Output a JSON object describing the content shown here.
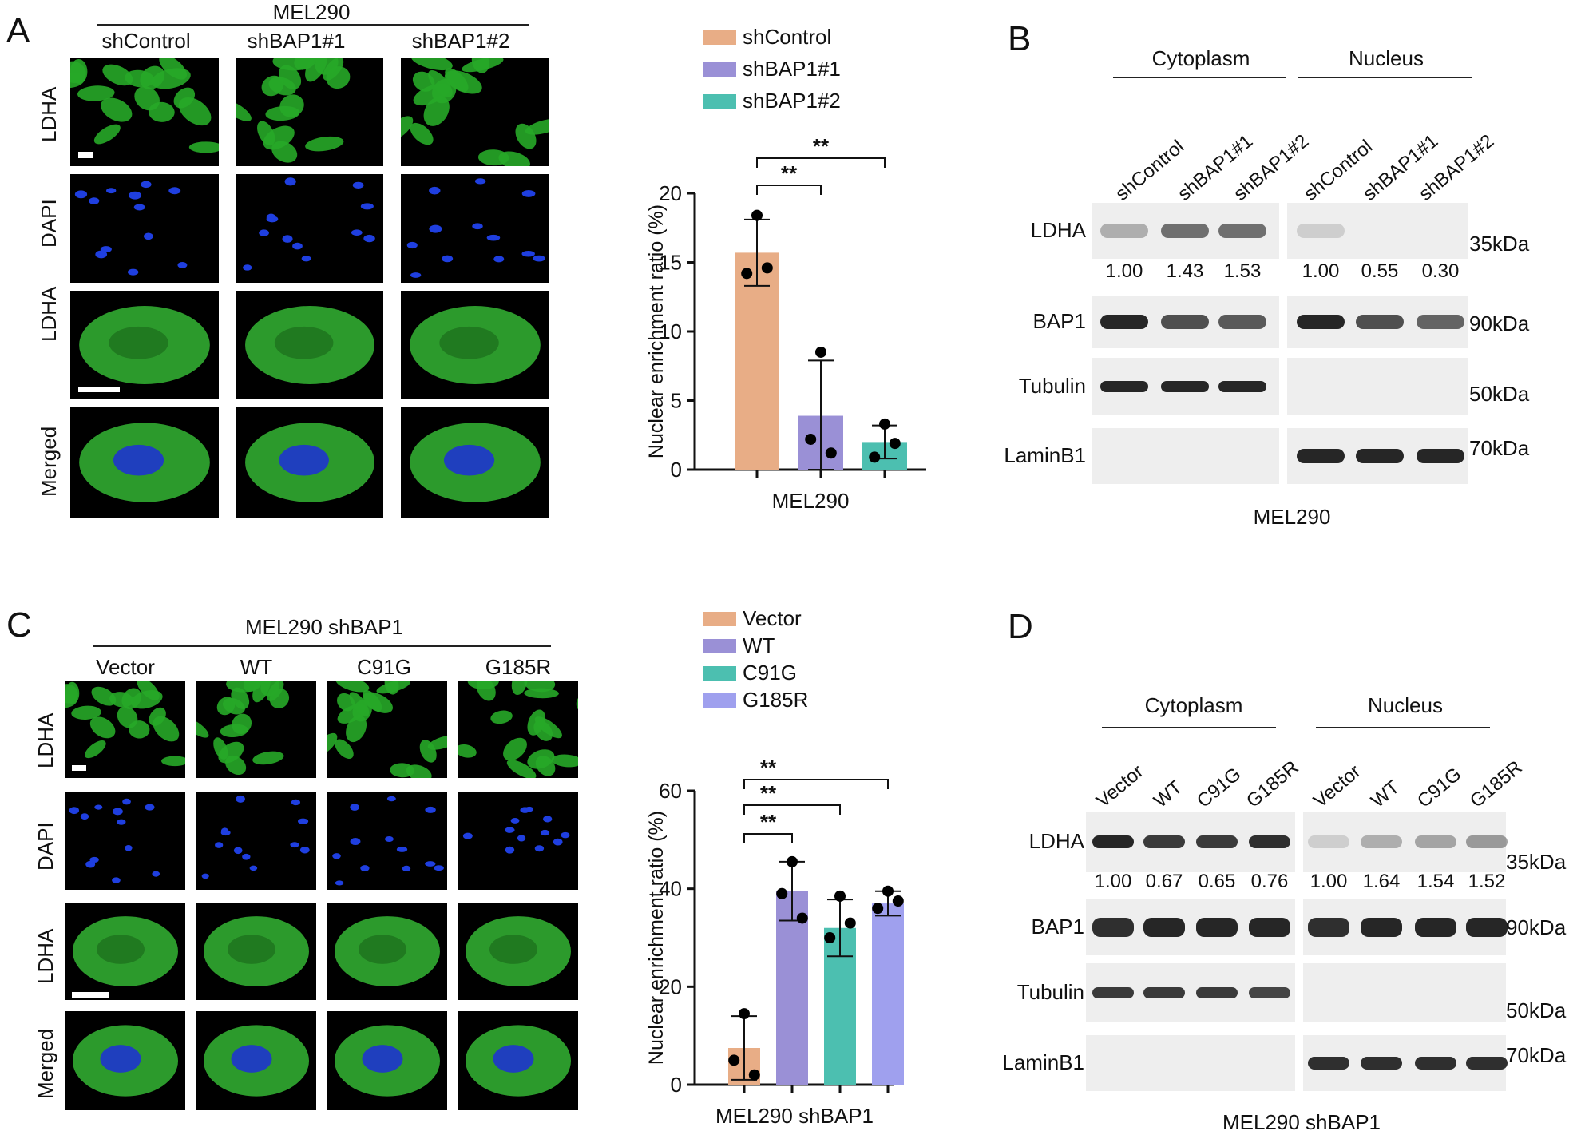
{
  "panels": {
    "A": {
      "letter": "A",
      "cell_line": "MEL290",
      "columns": [
        "shControl",
        "shBAP1#1",
        "shBAP1#2"
      ],
      "rows": [
        "LDHA",
        "DAPI",
        "LDHA",
        "Merged"
      ]
    },
    "B": {
      "letter": "B",
      "fractions": [
        "Cytoplasm",
        "Nucleus"
      ],
      "lanes": [
        "shControl",
        "shBAP1#1",
        "shBAP1#2",
        "shControl",
        "shBAP1#1",
        "shBAP1#2"
      ],
      "proteins": [
        "LDHA",
        "BAP1",
        "Tubulin",
        "LaminB1"
      ],
      "ldha_quant": [
        "1.00",
        "1.43",
        "1.53",
        "1.00",
        "0.55",
        "0.30"
      ],
      "sizes": [
        "35kDa",
        "90kDa",
        "50kDa",
        "70kDa"
      ],
      "footer": "MEL290"
    },
    "C": {
      "letter": "C",
      "cell_line": "MEL290 shBAP1",
      "columns": [
        "Vector",
        "WT",
        "C91G",
        "G185R"
      ],
      "rows": [
        "LDHA",
        "DAPI",
        "LDHA",
        "Merged"
      ]
    },
    "D": {
      "letter": "D",
      "fractions": [
        "Cytoplasm",
        "Nucleus"
      ],
      "lanes": [
        "Vector",
        "WT",
        "C91G",
        "G185R",
        "Vector",
        "WT",
        "C91G",
        "G185R"
      ],
      "proteins": [
        "LDHA",
        "BAP1",
        "Tubulin",
        "LaminB1"
      ],
      "ldha_quant": [
        "1.00",
        "0.67",
        "0.65",
        "0.76",
        "1.00",
        "1.64",
        "1.54",
        "1.52"
      ],
      "sizes": [
        "35kDa",
        "90kDa",
        "50kDa",
        "70kDa"
      ],
      "footer": "MEL290 shBAP1"
    }
  },
  "chart_data": [
    {
      "type": "bar",
      "panel": "A",
      "categories": [
        "shControl",
        "shBAP1#1",
        "shBAP1#2"
      ],
      "values": [
        15.7,
        3.9,
        2.0
      ],
      "errors": [
        2.4,
        4.0,
        1.2
      ],
      "points": [
        [
          18.4,
          14.2,
          14.6
        ],
        [
          8.5,
          2.2,
          1.2
        ],
        [
          3.3,
          0.9,
          1.9
        ]
      ],
      "colors": [
        "#e8ad86",
        "#9a90d6",
        "#4cbfb0"
      ],
      "ylabel": "Nuclear enrichment ratio (%)",
      "xlabel": "MEL290",
      "ylim": [
        0,
        20
      ],
      "yticks": [
        0,
        5,
        10,
        15,
        20
      ],
      "legend": [
        "shControl",
        "shBAP1#1",
        "shBAP1#2"
      ],
      "legend_position": "top",
      "significance": [
        {
          "from": 0,
          "to": 1,
          "label": "**"
        },
        {
          "from": 0,
          "to": 2,
          "label": "**"
        }
      ]
    },
    {
      "type": "bar",
      "panel": "C",
      "categories": [
        "Vector",
        "WT",
        "C91G",
        "G185R"
      ],
      "values": [
        7.5,
        39.5,
        32.0,
        37.0
      ],
      "errors": [
        6.5,
        6.0,
        5.8,
        2.5
      ],
      "points": [
        [
          14.5,
          5.0,
          2.0
        ],
        [
          45.5,
          39.0,
          34.0
        ],
        [
          38.5,
          30.0,
          33.0
        ],
        [
          39.5,
          36.0,
          37.5
        ]
      ],
      "colors": [
        "#e8ad86",
        "#9a90d6",
        "#4cbfb0",
        "#9fa0ee"
      ],
      "ylabel": "Nuclear enrichment ratio (%)",
      "xlabel": "MEL290 shBAP1",
      "ylim": [
        0,
        60
      ],
      "yticks": [
        0,
        20,
        40,
        60
      ],
      "legend": [
        "Vector",
        "WT",
        "C91G",
        "G185R"
      ],
      "legend_position": "top",
      "significance": [
        {
          "from": 0,
          "to": 1,
          "label": "**"
        },
        {
          "from": 0,
          "to": 2,
          "label": "**"
        },
        {
          "from": 0,
          "to": 3,
          "label": "**"
        }
      ]
    }
  ]
}
